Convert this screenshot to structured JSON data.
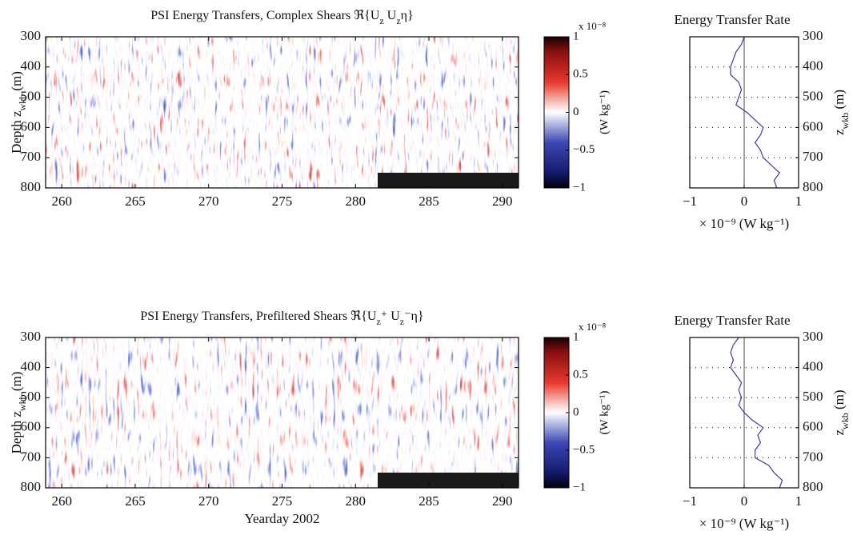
{
  "chart_data": [
    {
      "type": "heatmap",
      "title": [
        "PSI Energy Transfers, Complex Shears ℜ{U",
        "z",
        " U",
        "z",
        "η}"
      ],
      "ylabel": [
        "Depth z",
        "wkb",
        " (m)"
      ],
      "xlim": [
        258.9,
        291.1
      ],
      "xticks": [
        260,
        265,
        270,
        275,
        280,
        285,
        290
      ],
      "ylim": [
        300,
        800
      ],
      "yticks": [
        300,
        400,
        500,
        600,
        700,
        800
      ],
      "yreverse": true,
      "colorbar": {
        "lim": [
          -1,
          1
        ],
        "ticks": [
          {
            "value": -1,
            "label": "−1"
          },
          {
            "value": -0.5,
            "label": "−0.5"
          },
          0,
          0.5,
          1
        ],
        "exponent": "x 10⁻⁸",
        "label": "(W kg⁻¹)"
      }
    },
    {
      "type": "profile",
      "title": "Energy Transfer Rate",
      "ylabel": [
        "z",
        "wkb",
        " (m)"
      ],
      "xlabel": "× 10⁻⁹ (W kg⁻¹)",
      "xlim": [
        -1,
        1
      ],
      "xticks": [
        {
          "value": -1,
          "label": "−1"
        },
        0,
        1
      ],
      "ylim": [
        300,
        800
      ],
      "yticks": [
        300,
        400,
        500,
        600,
        700,
        800
      ],
      "yreverse": true,
      "grid": true,
      "color": "#3a3aa8",
      "y": [
        300,
        325,
        350,
        375,
        400,
        425,
        450,
        475,
        500,
        525,
        550,
        575,
        600,
        625,
        650,
        675,
        700,
        725,
        750,
        775,
        800
      ],
      "values": [
        0.0,
        -0.05,
        -0.15,
        -0.2,
        -0.25,
        -0.25,
        -0.1,
        -0.05,
        -0.1,
        -0.15,
        0.05,
        0.2,
        0.35,
        0.3,
        0.2,
        0.3,
        0.35,
        0.5,
        0.65,
        0.55,
        0.6
      ]
    },
    {
      "type": "heatmap",
      "title": [
        "PSI Energy Transfers, Prefiltered Shears ℜ{U",
        "z",
        "⁺ U",
        "z",
        "⁻η}"
      ],
      "ylabel": [
        "Depth z",
        "wkb",
        " (m)"
      ],
      "xlabel": "Yearday 2002",
      "xlim": [
        258.9,
        291.1
      ],
      "xticks": [
        260,
        265,
        270,
        275,
        280,
        285,
        290
      ],
      "ylim": [
        300,
        800
      ],
      "yticks": [
        300,
        400,
        500,
        600,
        700,
        800
      ],
      "yreverse": true,
      "colorbar": {
        "lim": [
          -1,
          1
        ],
        "ticks": [
          {
            "value": -1,
            "label": "−1"
          },
          {
            "value": -0.5,
            "label": "−0.5"
          },
          0,
          0.5,
          1
        ],
        "exponent": "x 10⁻⁸",
        "label": "(W kg⁻¹)"
      }
    },
    {
      "type": "profile",
      "title": "Energy Transfer Rate",
      "ylabel": [
        "z",
        "wkb",
        " (m)"
      ],
      "xlabel": "× 10⁻⁹ (W kg⁻¹)",
      "xlim": [
        -1,
        1
      ],
      "xticks": [
        {
          "value": -1,
          "label": "−1"
        },
        0,
        1
      ],
      "ylim": [
        300,
        800
      ],
      "yticks": [
        300,
        400,
        500,
        600,
        700,
        800
      ],
      "yreverse": true,
      "grid": true,
      "color": "#3a3aa8",
      "y": [
        300,
        325,
        350,
        375,
        400,
        425,
        450,
        475,
        500,
        525,
        550,
        575,
        600,
        625,
        650,
        675,
        700,
        725,
        750,
        775,
        800
      ],
      "values": [
        -0.1,
        -0.2,
        -0.25,
        -0.2,
        -0.25,
        -0.15,
        -0.05,
        -0.1,
        -0.05,
        -0.1,
        0.0,
        0.15,
        0.35,
        0.25,
        0.3,
        0.2,
        0.2,
        0.45,
        0.55,
        0.7,
        0.65
      ]
    }
  ]
}
